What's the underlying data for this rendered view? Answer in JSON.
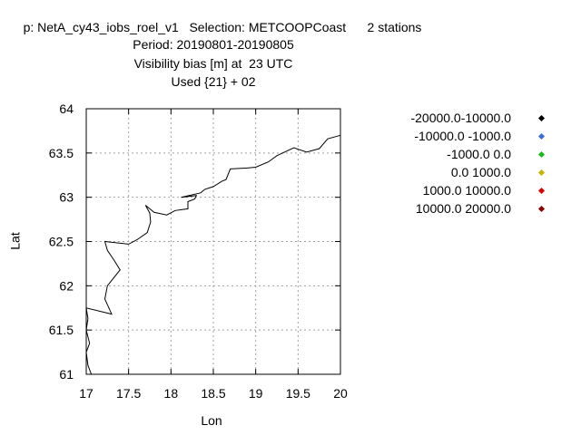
{
  "header": {
    "line1": "p: NetA_cy43_iobs_roel_v1   Selection: METCOOPCoast      2 stations",
    "line2": "Period: 20190801-20190805",
    "line3": "Visibility bias [m] at  23 UTC",
    "line4": "Used {21} + 02"
  },
  "chart_data": {
    "type": "scatter",
    "xlabel": "Lon",
    "ylabel": "Lat",
    "xlim": [
      17,
      20
    ],
    "ylim": [
      61,
      64
    ],
    "grid": true,
    "x_ticks": [
      "17",
      "17.5",
      "18",
      "18.5",
      "19",
      "19.5",
      "20"
    ],
    "y_ticks": [
      "61",
      "61.5",
      "62",
      "62.5",
      "63",
      "63.5",
      "64"
    ],
    "legend_position": "right",
    "series": [
      {
        "name": "-20000.0-10000.0",
        "color": "#000000",
        "points": []
      },
      {
        "name": "-10000.0 -1000.0",
        "color": "#3b6fd4",
        "points": []
      },
      {
        "name": "-1000.0 0.0",
        "color": "#1fb81f",
        "points": []
      },
      {
        "name": "0.0 1000.0",
        "color": "#c8b400",
        "points": []
      },
      {
        "name": "1000.0 10000.0",
        "color": "#e00000",
        "points": []
      },
      {
        "name": "10000.0 20000.0",
        "color": "#8b0000",
        "points": []
      }
    ],
    "coastline": [
      [
        17.06,
        61.0
      ],
      [
        17.02,
        61.1
      ],
      [
        17.0,
        61.25
      ],
      [
        17.04,
        61.35
      ],
      [
        17.0,
        61.5
      ],
      [
        17.02,
        61.63
      ],
      [
        17.0,
        61.75
      ],
      [
        17.3,
        61.68
      ],
      [
        17.22,
        61.85
      ],
      [
        17.25,
        62.0
      ],
      [
        17.4,
        62.18
      ],
      [
        17.32,
        62.3
      ],
      [
        17.25,
        62.4
      ],
      [
        17.22,
        62.5
      ],
      [
        17.5,
        62.47
      ],
      [
        17.6,
        62.52
      ],
      [
        17.72,
        62.6
      ],
      [
        17.76,
        62.72
      ],
      [
        17.75,
        62.82
      ],
      [
        17.7,
        62.91
      ],
      [
        17.8,
        62.83
      ],
      [
        17.95,
        62.8
      ],
      [
        18.05,
        62.85
      ],
      [
        18.2,
        62.87
      ],
      [
        18.2,
        62.95
      ],
      [
        18.28,
        62.98
      ],
      [
        18.3,
        63.02
      ],
      [
        18.12,
        63.0
      ],
      [
        18.35,
        63.05
      ],
      [
        18.4,
        63.09
      ],
      [
        18.5,
        63.12
      ],
      [
        18.6,
        63.18
      ],
      [
        18.65,
        63.2
      ],
      [
        18.7,
        63.32
      ],
      [
        18.9,
        63.33
      ],
      [
        19.0,
        63.34
      ],
      [
        19.15,
        63.4
      ],
      [
        19.25,
        63.47
      ],
      [
        19.45,
        63.56
      ],
      [
        19.6,
        63.51
      ],
      [
        19.75,
        63.55
      ],
      [
        19.85,
        63.66
      ],
      [
        20.0,
        63.7
      ]
    ]
  }
}
